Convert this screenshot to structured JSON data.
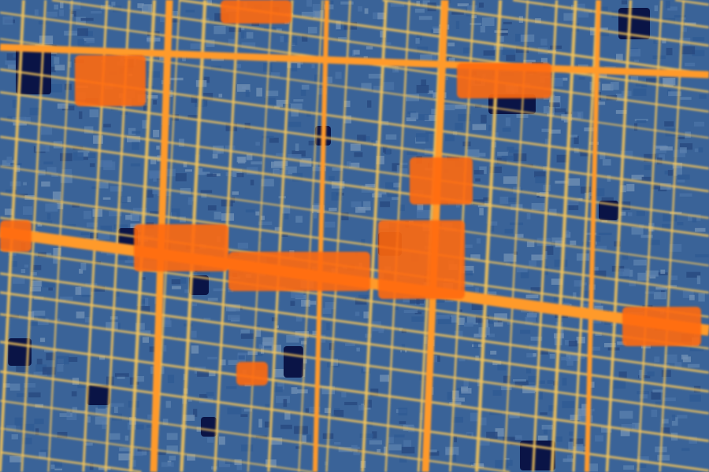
{
  "map": {
    "type": "thermal false-color urban imagery",
    "palette": {
      "coolest": "#0a1446",
      "cool": "#2f5a94",
      "mild": "#6f8fb4",
      "warm": "#f2c35a",
      "hot": "#ff9a2a",
      "hottest": "#ff6a10"
    }
  }
}
